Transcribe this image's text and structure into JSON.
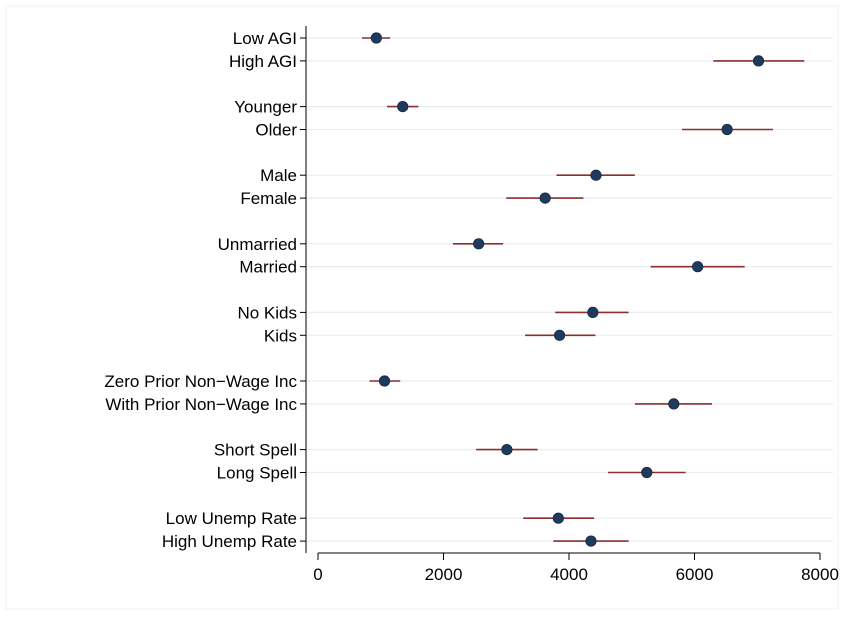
{
  "chart_data": {
    "type": "scatter",
    "title": "",
    "xlabel": "",
    "ylabel": "",
    "xlim": [
      0,
      8000
    ],
    "xticks": [
      0,
      2000,
      4000,
      6000,
      8000
    ],
    "xtick_labels": [
      "0",
      "2000",
      "4000",
      "6000",
      "8000"
    ],
    "grid": "horizontal",
    "legend": "none",
    "colors": {
      "marker": "#1f3a5f",
      "ci": "#8b2e2e",
      "grid": "#e8eef2",
      "axis": "#000000"
    },
    "categories": [
      "Low AGI",
      "High AGI",
      "Younger",
      "Older",
      "Male",
      "Female",
      "Unmarried",
      "Married",
      "No Kids",
      "Kids",
      "Zero Prior Non−Wage Inc",
      "With Prior Non−Wage Inc",
      "Short Spell",
      "Long Spell",
      "Low Unemp Rate",
      "High Unemp Rate"
    ],
    "groups": [
      [
        0,
        1
      ],
      [
        2,
        3
      ],
      [
        4,
        5
      ],
      [
        6,
        7
      ],
      [
        8,
        9
      ],
      [
        10,
        11
      ],
      [
        12,
        13
      ],
      [
        14,
        15
      ]
    ],
    "series": [
      {
        "values": [
          930,
          7020,
          1350,
          6520,
          4430,
          3620,
          2560,
          6050,
          4380,
          3850,
          1060,
          5670,
          3010,
          5240,
          3830,
          4350
        ],
        "ci_low": [
          700,
          6300,
          1100,
          5800,
          3800,
          3000,
          2150,
          5300,
          3780,
          3300,
          820,
          5050,
          2520,
          4620,
          3270,
          3750
        ],
        "ci_high": [
          1150,
          7750,
          1600,
          7250,
          5050,
          4230,
          2950,
          6800,
          4950,
          4420,
          1310,
          6280,
          3500,
          5860,
          4400,
          4950
        ]
      }
    ]
  }
}
